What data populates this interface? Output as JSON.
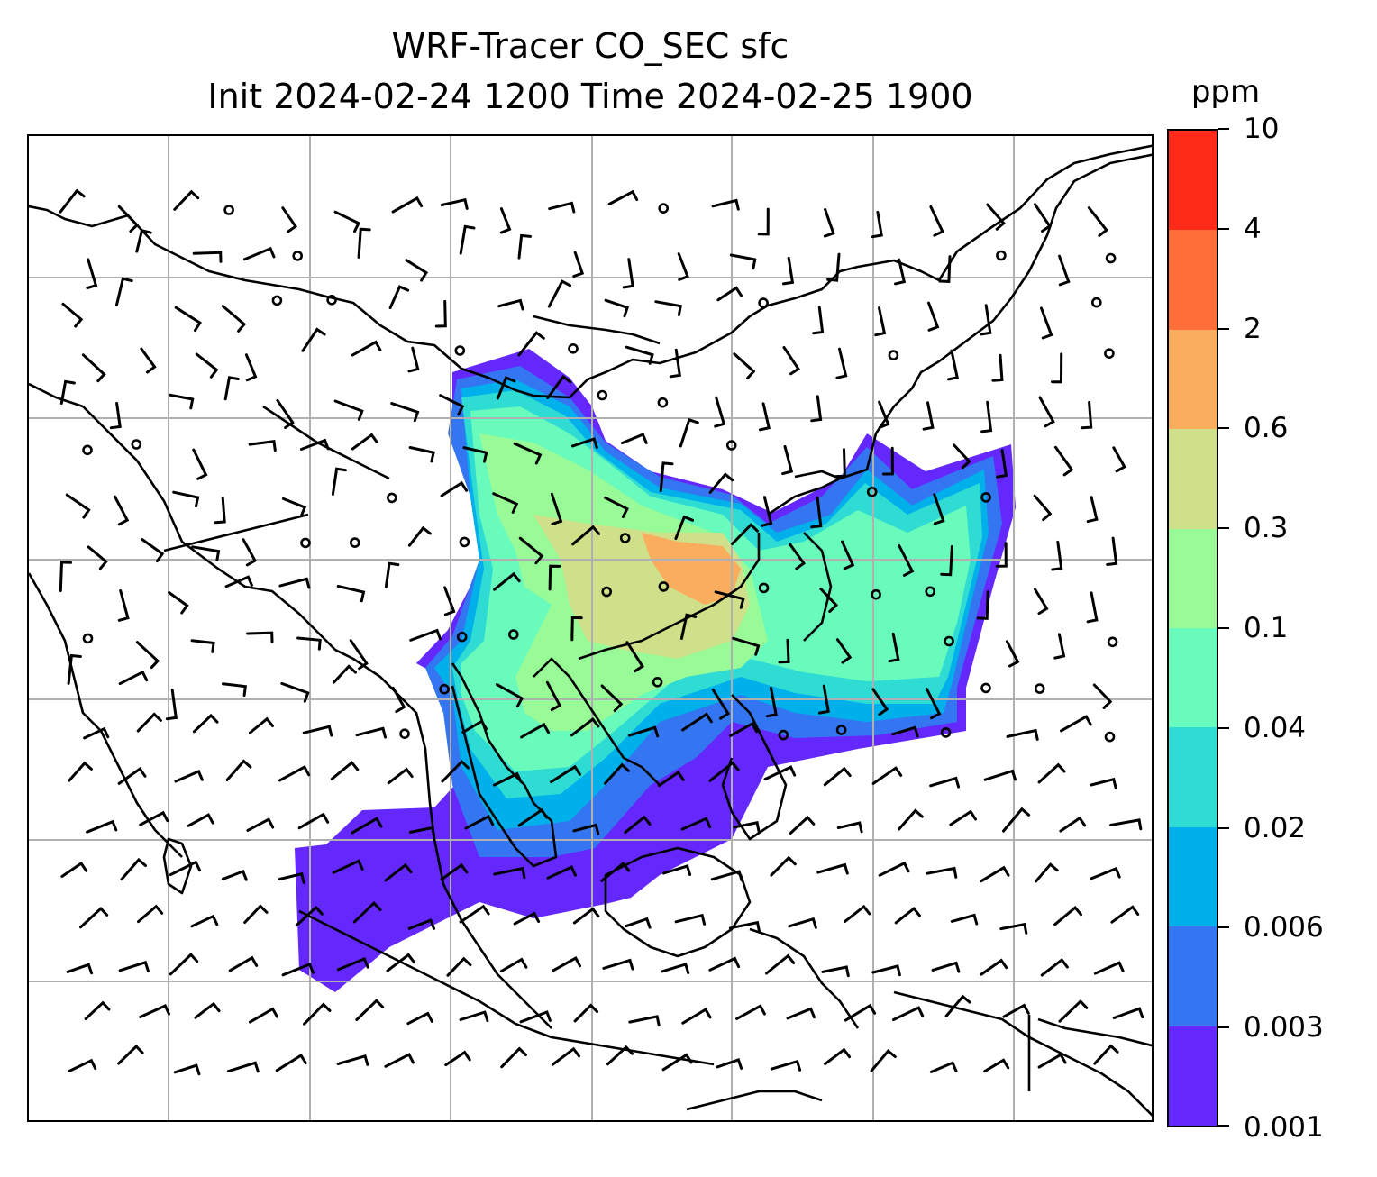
{
  "title": {
    "line1": "WRF-Tracer CO_SEC sfc",
    "line2": "Init 2024-02-24 1200 Time 2024-02-25 1900"
  },
  "map": {
    "field": "CO_SEC",
    "level": "sfc",
    "overlays": [
      "coastlines",
      "country-borders",
      "wind-barbs",
      "gridlines"
    ]
  },
  "colorbar": {
    "unit": "ppm",
    "levels": [
      "0.001",
      "0.003",
      "0.006",
      "0.02",
      "0.04",
      "0.1",
      "0.3",
      "0.6",
      "2",
      "4",
      "10"
    ],
    "colors": [
      "#6428fc",
      "#3476f2",
      "#00b0ea",
      "#2edcd4",
      "#68fbbc",
      "#98fb98",
      "#cfe08a",
      "#fbad5e",
      "#ff6e38",
      "#ff2a18"
    ]
  }
}
